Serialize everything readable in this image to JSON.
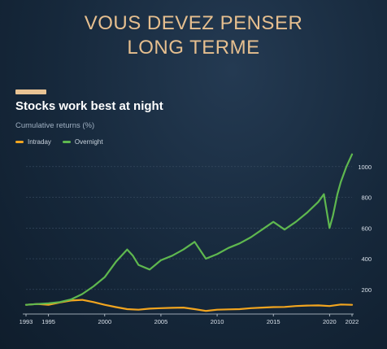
{
  "headline": {
    "line1": "VOUS DEVEZ PENSER",
    "line2": "LONG TERME"
  },
  "chart_data": {
    "type": "line",
    "title": "Stocks work best at night",
    "subtitle": "Cumulative returns (%)",
    "xlabel": "",
    "ylabel": "",
    "xlim": [
      1993,
      2022
    ],
    "ylim": [
      40,
      1110
    ],
    "x_ticks": [
      "1993",
      "1995",
      "2000",
      "2005",
      "2010",
      "2015",
      "2020",
      "2022"
    ],
    "y_ticks": [
      "200",
      "400",
      "600",
      "800",
      "1000"
    ],
    "grid": true,
    "legend_position": "top-left",
    "series": [
      {
        "name": "Intraday",
        "color": "#f2a51f",
        "points": [
          [
            1993,
            100
          ],
          [
            1994,
            105
          ],
          [
            1995,
            100
          ],
          [
            1996,
            115
          ],
          [
            1997,
            128
          ],
          [
            1998,
            132
          ],
          [
            1999,
            118
          ],
          [
            2000,
            100
          ],
          [
            2001,
            85
          ],
          [
            2002,
            72
          ],
          [
            2003,
            68
          ],
          [
            2004,
            75
          ],
          [
            2005,
            78
          ],
          [
            2006,
            80
          ],
          [
            2007,
            82
          ],
          [
            2008,
            72
          ],
          [
            2009,
            60
          ],
          [
            2010,
            68
          ],
          [
            2011,
            70
          ],
          [
            2012,
            72
          ],
          [
            2013,
            78
          ],
          [
            2014,
            82
          ],
          [
            2015,
            85
          ],
          [
            2016,
            86
          ],
          [
            2017,
            92
          ],
          [
            2018,
            95
          ],
          [
            2019,
            96
          ],
          [
            2020,
            92
          ],
          [
            2021,
            102
          ],
          [
            2022,
            100
          ]
        ]
      },
      {
        "name": "Overnight",
        "color": "#5fb84f",
        "points": [
          [
            1993,
            100
          ],
          [
            1994,
            105
          ],
          [
            1995,
            110
          ],
          [
            1996,
            118
          ],
          [
            1997,
            135
          ],
          [
            1998,
            170
          ],
          [
            1999,
            220
          ],
          [
            2000,
            280
          ],
          [
            2001,
            380
          ],
          [
            2002,
            460
          ],
          [
            2002.5,
            420
          ],
          [
            2003,
            360
          ],
          [
            2004,
            330
          ],
          [
            2004.5,
            360
          ],
          [
            2005,
            390
          ],
          [
            2006,
            420
          ],
          [
            2007,
            460
          ],
          [
            2008,
            510
          ],
          [
            2009,
            400
          ],
          [
            2010,
            430
          ],
          [
            2011,
            470
          ],
          [
            2012,
            500
          ],
          [
            2013,
            540
          ],
          [
            2014,
            590
          ],
          [
            2015,
            640
          ],
          [
            2016,
            590
          ],
          [
            2017,
            640
          ],
          [
            2018,
            700
          ],
          [
            2019,
            770
          ],
          [
            2019.5,
            820
          ],
          [
            2020,
            600
          ],
          [
            2020.3,
            680
          ],
          [
            2020.7,
            820
          ],
          [
            2021,
            900
          ],
          [
            2021.5,
            1000
          ],
          [
            2022,
            1080
          ]
        ]
      }
    ]
  }
}
